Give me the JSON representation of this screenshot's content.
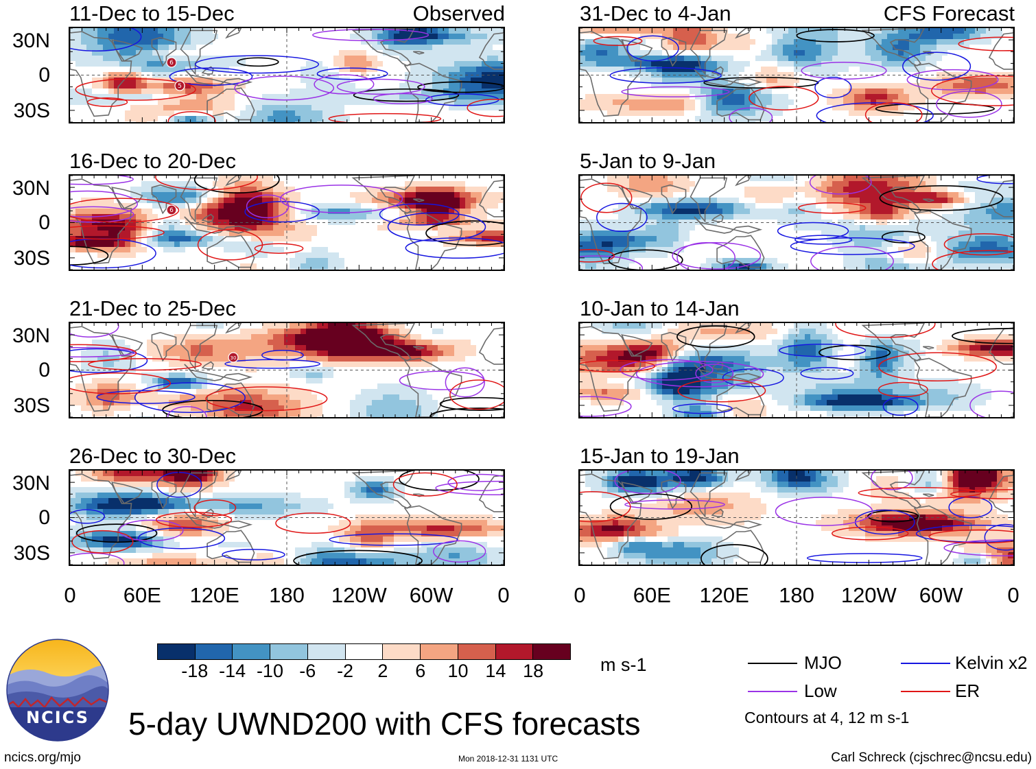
{
  "chart_data": {
    "type": "heatmap",
    "title": "5-day UWND200 with CFS forecasts",
    "variable": "UWND200",
    "units": "m s-1",
    "column_labels": {
      "left": "Observed",
      "right": "CFS Forecast"
    },
    "lat_ticks": [
      "30N",
      "0",
      "30S"
    ],
    "lon_ticks": [
      "0",
      "60E",
      "120E",
      "180",
      "120W",
      "60W",
      "0"
    ],
    "lat_range": [
      -40,
      40
    ],
    "lon_range": [
      0,
      360
    ],
    "color_levels": [
      "-18",
      "-14",
      "-10",
      "-6",
      "-2",
      "2",
      "6",
      "10",
      "14",
      "18"
    ],
    "color_scale": [
      "#08306b",
      "#2166ac",
      "#4393c3",
      "#92c5de",
      "#d1e5f0",
      "#ffffff",
      "#fddbc7",
      "#f4a582",
      "#d6604d",
      "#b2182b",
      "#67001f"
    ],
    "panels": [
      {
        "id": "obs1",
        "column": "observed",
        "period": "11-Dec to 15-Dec",
        "markers": [
          "6",
          "5"
        ]
      },
      {
        "id": "obs2",
        "column": "observed",
        "period": "16-Dec to 20-Dec",
        "markers": [
          "6"
        ]
      },
      {
        "id": "obs3",
        "column": "observed",
        "period": "21-Dec to 25-Dec",
        "markers": [
          "30"
        ]
      },
      {
        "id": "obs4",
        "column": "observed",
        "period": "26-Dec to 30-Dec",
        "markers": []
      },
      {
        "id": "fc1",
        "column": "forecast",
        "period": "31-Dec to 4-Jan",
        "markers": []
      },
      {
        "id": "fc2",
        "column": "forecast",
        "period": "5-Jan to 9-Jan",
        "markers": []
      },
      {
        "id": "fc3",
        "column": "forecast",
        "period": "10-Jan to 14-Jan",
        "markers": []
      },
      {
        "id": "fc4",
        "column": "forecast",
        "period": "15-Jan to 19-Jan",
        "markers": []
      }
    ],
    "contour_legend": [
      {
        "name": "MJO",
        "color": "#000000"
      },
      {
        "name": "Kelvin x2",
        "color": "#1515e0"
      },
      {
        "name": "Low",
        "color": "#9a32e6"
      },
      {
        "name": "ER",
        "color": "#e01515"
      }
    ],
    "contour_note": "Contours at 4, 12 m s-1"
  },
  "logo": {
    "text": "NCICS"
  },
  "footer": {
    "website": "ncics.org/mjo",
    "timestamp": "Mon 2018-12-31 1131 UTC",
    "credit": "Carl Schreck (cjschrec@ncsu.edu)"
  }
}
